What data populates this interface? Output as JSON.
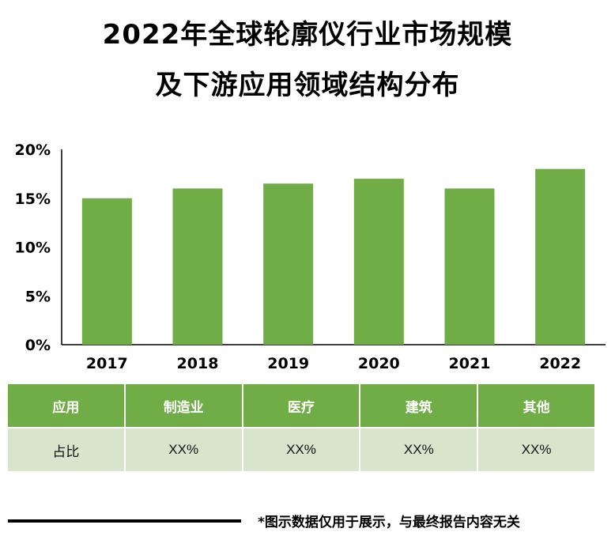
{
  "title": {
    "line1": "2022年全球轮廓仪行业市场规模",
    "line2": "及下游应用领域结构分布"
  },
  "chart_data": {
    "type": "bar",
    "categories": [
      "2017",
      "2018",
      "2019",
      "2020",
      "2021",
      "2022"
    ],
    "values": [
      15,
      16,
      16.5,
      17,
      16,
      18
    ],
    "ylim": [
      0,
      20
    ],
    "yticks": [
      0,
      5,
      10,
      15,
      20
    ],
    "ytick_labels": [
      "0%",
      "5%",
      "10%",
      "15%",
      "20%"
    ],
    "bar_color": "#70ad47",
    "title": "2022年全球轮廓仪行业市场规模及下游应用领域结构分布",
    "xlabel": "",
    "ylabel": ""
  },
  "table": {
    "headers": [
      "应用",
      "制造业",
      "医疗",
      "建筑",
      "其他"
    ],
    "row": [
      "占比",
      "XX%",
      "XX%",
      "XX%",
      "XX%"
    ]
  },
  "footnote": "*图示数据仅用于展示，与最终报告内容无关",
  "colors": {
    "header_bg": "#70ad47",
    "row_bg": "#d8e4cc"
  }
}
